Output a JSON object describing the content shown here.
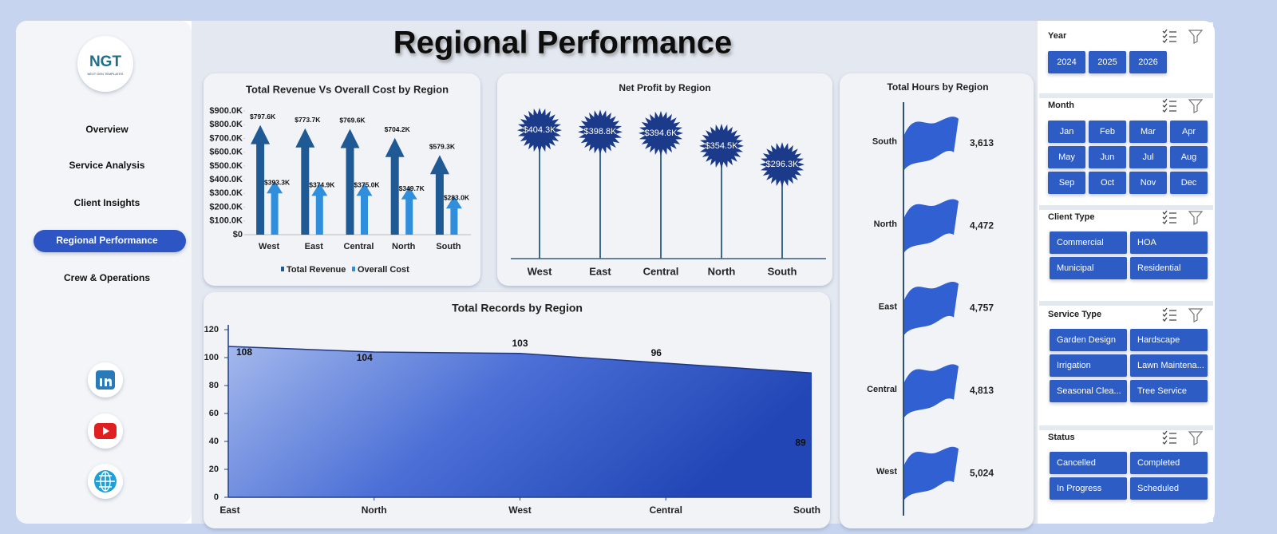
{
  "dashboard": {
    "title": "Regional Performance",
    "logo": "NGT",
    "logo_tagline": "NEXT GEN TEMPLATES",
    "nav": [
      "Overview",
      "Service Analysis",
      "Client Insights",
      "Regional Performance",
      "Crew & Operations"
    ],
    "active_nav": 3
  },
  "slicers": [
    {
      "title": "Year",
      "items": [
        "2024",
        "2025",
        "2026"
      ]
    },
    {
      "title": "Month",
      "items": [
        "Jan",
        "Feb",
        "Mar",
        "Apr",
        "May",
        "Jun",
        "Jul",
        "Aug",
        "Sep",
        "Oct",
        "Nov",
        "Dec"
      ]
    },
    {
      "title": "Client Type",
      "items": [
        "Commercial",
        "HOA",
        "Municipal",
        "Residential"
      ]
    },
    {
      "title": "Service Type",
      "items": [
        "Garden Design",
        "Hardscape",
        "Irrigation",
        "Lawn Maintena...",
        "Seasonal Clea...",
        "Tree Service"
      ]
    },
    {
      "title": "Status",
      "items": [
        "Cancelled",
        "Completed",
        "In Progress",
        "Scheduled"
      ]
    }
  ],
  "chart_data": [
    {
      "type": "bar",
      "title": "Total Revenue Vs Overall Cost by Region",
      "categories": [
        "West",
        "East",
        "Central",
        "North",
        "South"
      ],
      "series": [
        {
          "name": "Total Revenue",
          "color": "#1f5a94",
          "values": [
            797600,
            773700,
            769600,
            704200,
            579300
          ],
          "value_labels": [
            "$797.6K",
            "$773.7K",
            "$769.6K",
            "$704.2K",
            "$579.3K"
          ]
        },
        {
          "name": "Overall Cost",
          "color": "#2f8fdc",
          "values": [
            393300,
            374900,
            375000,
            349700,
            283000
          ],
          "value_labels": [
            "$393.3K",
            "$374.9K",
            "$375.0K",
            "$349.7K",
            "$283.0K"
          ]
        }
      ],
      "ylim": [
        0,
        900000
      ],
      "yticks": [
        {
          "value": 0,
          "label": "$0"
        },
        {
          "value": 100000,
          "label": "$100.0K"
        },
        {
          "value": 200000,
          "label": "$200.0K"
        },
        {
          "value": 300000,
          "label": "$300.0K"
        },
        {
          "value": 400000,
          "label": "$400.0K"
        },
        {
          "value": 500000,
          "label": "$500.0K"
        },
        {
          "value": 600000,
          "label": "$600.0K"
        },
        {
          "value": 700000,
          "label": "$700.0K"
        },
        {
          "value": 800000,
          "label": "$800.0K"
        },
        {
          "value": 900000,
          "label": "$900.0K"
        }
      ],
      "legend": "bottom"
    },
    {
      "type": "lollipop",
      "title": "Net Profit by Region",
      "categories": [
        "West",
        "East",
        "Central",
        "North",
        "South"
      ],
      "values": [
        404300,
        398800,
        394600,
        354500,
        296300
      ],
      "value_labels": [
        "$404.3K",
        "$398.8K",
        "$394.6K",
        "$354.5K",
        "$296.3K"
      ],
      "color": "#1b3a8a"
    },
    {
      "type": "flag",
      "title": "Total Hours by Region",
      "categories": [
        "South",
        "North",
        "East",
        "Central",
        "West"
      ],
      "values": [
        3613,
        4472,
        4757,
        4813,
        5024
      ],
      "value_labels": [
        "3,613",
        "4,472",
        "4,757",
        "4,813",
        "5,024"
      ],
      "color": "#3160d2"
    },
    {
      "type": "area",
      "title": "Total Records by Region",
      "categories": [
        "East",
        "North",
        "West",
        "Central",
        "South"
      ],
      "values": [
        108,
        104,
        103,
        96,
        89
      ],
      "color": "#2d55c8",
      "ylim": [
        0,
        120
      ],
      "yticks": [
        0,
        20,
        40,
        60,
        80,
        100,
        120
      ]
    }
  ]
}
